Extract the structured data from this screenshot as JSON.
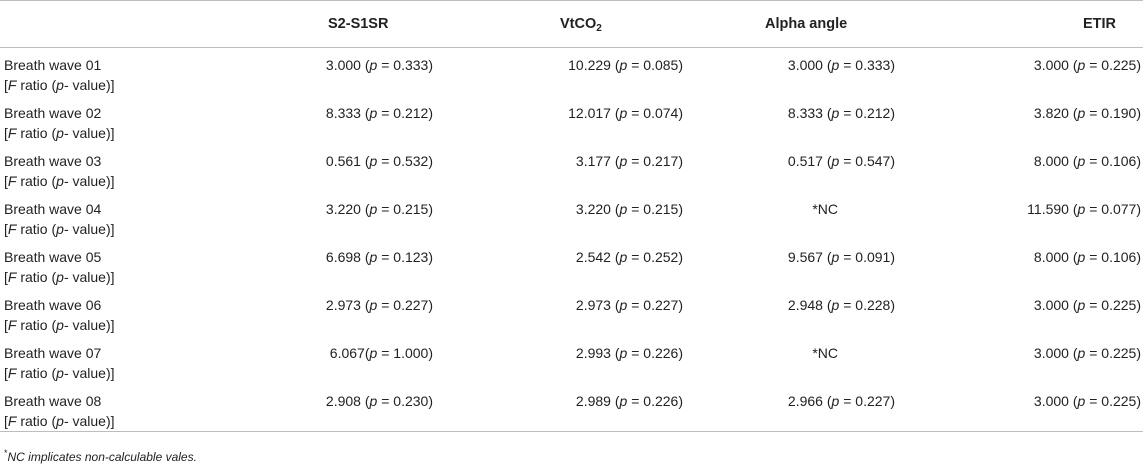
{
  "columns": {
    "c1": "S2-S1SR",
    "c2_main": "VtCO",
    "c2_sub": "2",
    "c3": "Alpha angle",
    "c4": "ETIR"
  },
  "row_sublabel": {
    "open": "[",
    "F": "F",
    "mid": " ratio (",
    "p": "p",
    "close": "- value)]"
  },
  "rows": [
    {
      "label": "Breath wave 01",
      "c1": [
        "3.000",
        "0.333"
      ],
      "c2": [
        "10.229",
        "0.085"
      ],
      "c3": [
        "3.000",
        "0.333"
      ],
      "c4": [
        "3.000",
        "0.225"
      ]
    },
    {
      "label": "Breath wave 02",
      "c1": [
        "8.333",
        "0.212"
      ],
      "c2": [
        "12.017",
        "0.074"
      ],
      "c3": [
        "8.333",
        "0.212"
      ],
      "c4": [
        "3.820",
        "0.190"
      ]
    },
    {
      "label": "Breath wave 03",
      "c1": [
        "0.561",
        "0.532"
      ],
      "c2": [
        "3.177",
        "0.217"
      ],
      "c3": [
        "0.517",
        "0.547"
      ],
      "c4": [
        "8.000",
        "0.106"
      ]
    },
    {
      "label": "Breath wave 04",
      "c1": [
        "3.220",
        "0.215"
      ],
      "c2": [
        "3.220",
        "0.215"
      ],
      "c3_text": "*NC",
      "c4": [
        "11.590",
        "0.077"
      ]
    },
    {
      "label": "Breath wave 05",
      "c1": [
        "6.698",
        "0.123"
      ],
      "c2": [
        "2.542",
        "0.252"
      ],
      "c3": [
        "9.567",
        "0.091"
      ],
      "c4": [
        "8.000",
        "0.106"
      ]
    },
    {
      "label": "Breath wave 06",
      "c1": [
        "2.973",
        "0.227"
      ],
      "c2": [
        "2.973",
        "0.227"
      ],
      "c3": [
        "2.948",
        "0.228"
      ],
      "c4": [
        "3.000",
        "0.225"
      ]
    },
    {
      "label": "Breath wave 07",
      "c1": [
        "6.067",
        "1.000"
      ],
      "c1_nospace": true,
      "c2": [
        "2.993",
        "0.226"
      ],
      "c3_text": "*NC",
      "c4": [
        "3.000",
        "0.225"
      ]
    },
    {
      "label": "Breath wave 08",
      "c1": [
        "2.908",
        "0.230"
      ],
      "c2": [
        "2.989",
        "0.226"
      ],
      "c3": [
        "2.966",
        "0.227"
      ],
      "c4": [
        "3.000",
        "0.225"
      ]
    }
  ],
  "footnote": {
    "mark": "*",
    "text": "NC implicates non-calculable vales."
  }
}
